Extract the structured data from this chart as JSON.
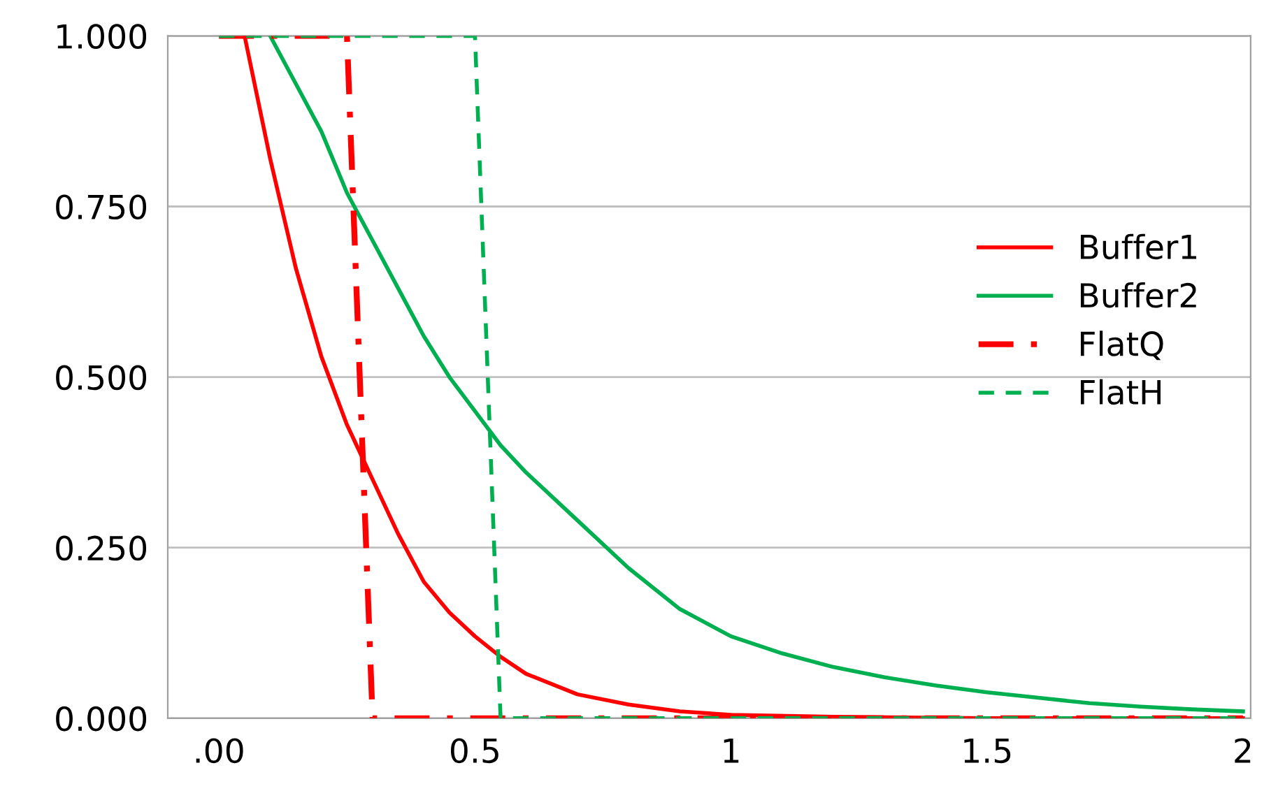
{
  "chart_data": {
    "type": "line",
    "xlim": [
      -0.1,
      2.015
    ],
    "xticks": [
      {
        "value": 0,
        "label": ".00"
      },
      0.5,
      1,
      1.5,
      2
    ],
    "ylim": [
      0,
      1
    ],
    "yticks": [
      {
        "value": 0,
        "label": "0.000"
      },
      {
        "value": 0.25,
        "label": "0.250"
      },
      {
        "value": 0.5,
        "label": "0.500"
      },
      {
        "value": 0.75,
        "label": "0.750"
      },
      {
        "value": 1,
        "label": "1.000"
      }
    ],
    "grid": "y",
    "legend": "right",
    "series": [
      {
        "name": "Buffer1",
        "color": "#ff0000",
        "line_style": "solid",
        "x": [
          0.05,
          0.1,
          0.15,
          0.2,
          0.25,
          0.3,
          0.35,
          0.4,
          0.45,
          0.5,
          0.55,
          0.6,
          0.7,
          0.8,
          0.9,
          1.0,
          1.2,
          1.5,
          2.0
        ],
        "values": [
          1,
          0.82,
          0.66,
          0.53,
          0.43,
          0.35,
          0.27,
          0.2,
          0.155,
          0.12,
          0.09,
          0.065,
          0.035,
          0.02,
          0.01,
          0.005,
          0.002,
          0,
          0
        ]
      },
      {
        "name": "Buffer2",
        "color": "#00b050",
        "line_style": "solid",
        "x": [
          0.1,
          0.15,
          0.2,
          0.25,
          0.3,
          0.35,
          0.4,
          0.45,
          0.5,
          0.55,
          0.6,
          0.7,
          0.8,
          0.9,
          1.0,
          1.1,
          1.2,
          1.3,
          1.4,
          1.5,
          1.6,
          1.7,
          1.8,
          1.9,
          2.0
        ],
        "values": [
          1,
          0.93,
          0.86,
          0.77,
          0.7,
          0.63,
          0.56,
          0.5,
          0.45,
          0.4,
          0.36,
          0.29,
          0.22,
          0.16,
          0.12,
          0.095,
          0.075,
          0.06,
          0.048,
          0.038,
          0.03,
          0.022,
          0.017,
          0.013,
          0.01
        ]
      },
      {
        "name": "FlatQ",
        "color": "#ff0000",
        "line_style": "dashdot",
        "x": [
          0,
          0.25,
          0.3,
          2.0
        ],
        "values": [
          1,
          1,
          0,
          0
        ]
      },
      {
        "name": "FlatH",
        "color": "#00b050",
        "line_style": "dashed",
        "x": [
          0,
          0.5,
          0.55,
          2.0
        ],
        "values": [
          1,
          1,
          0,
          0
        ]
      }
    ]
  }
}
